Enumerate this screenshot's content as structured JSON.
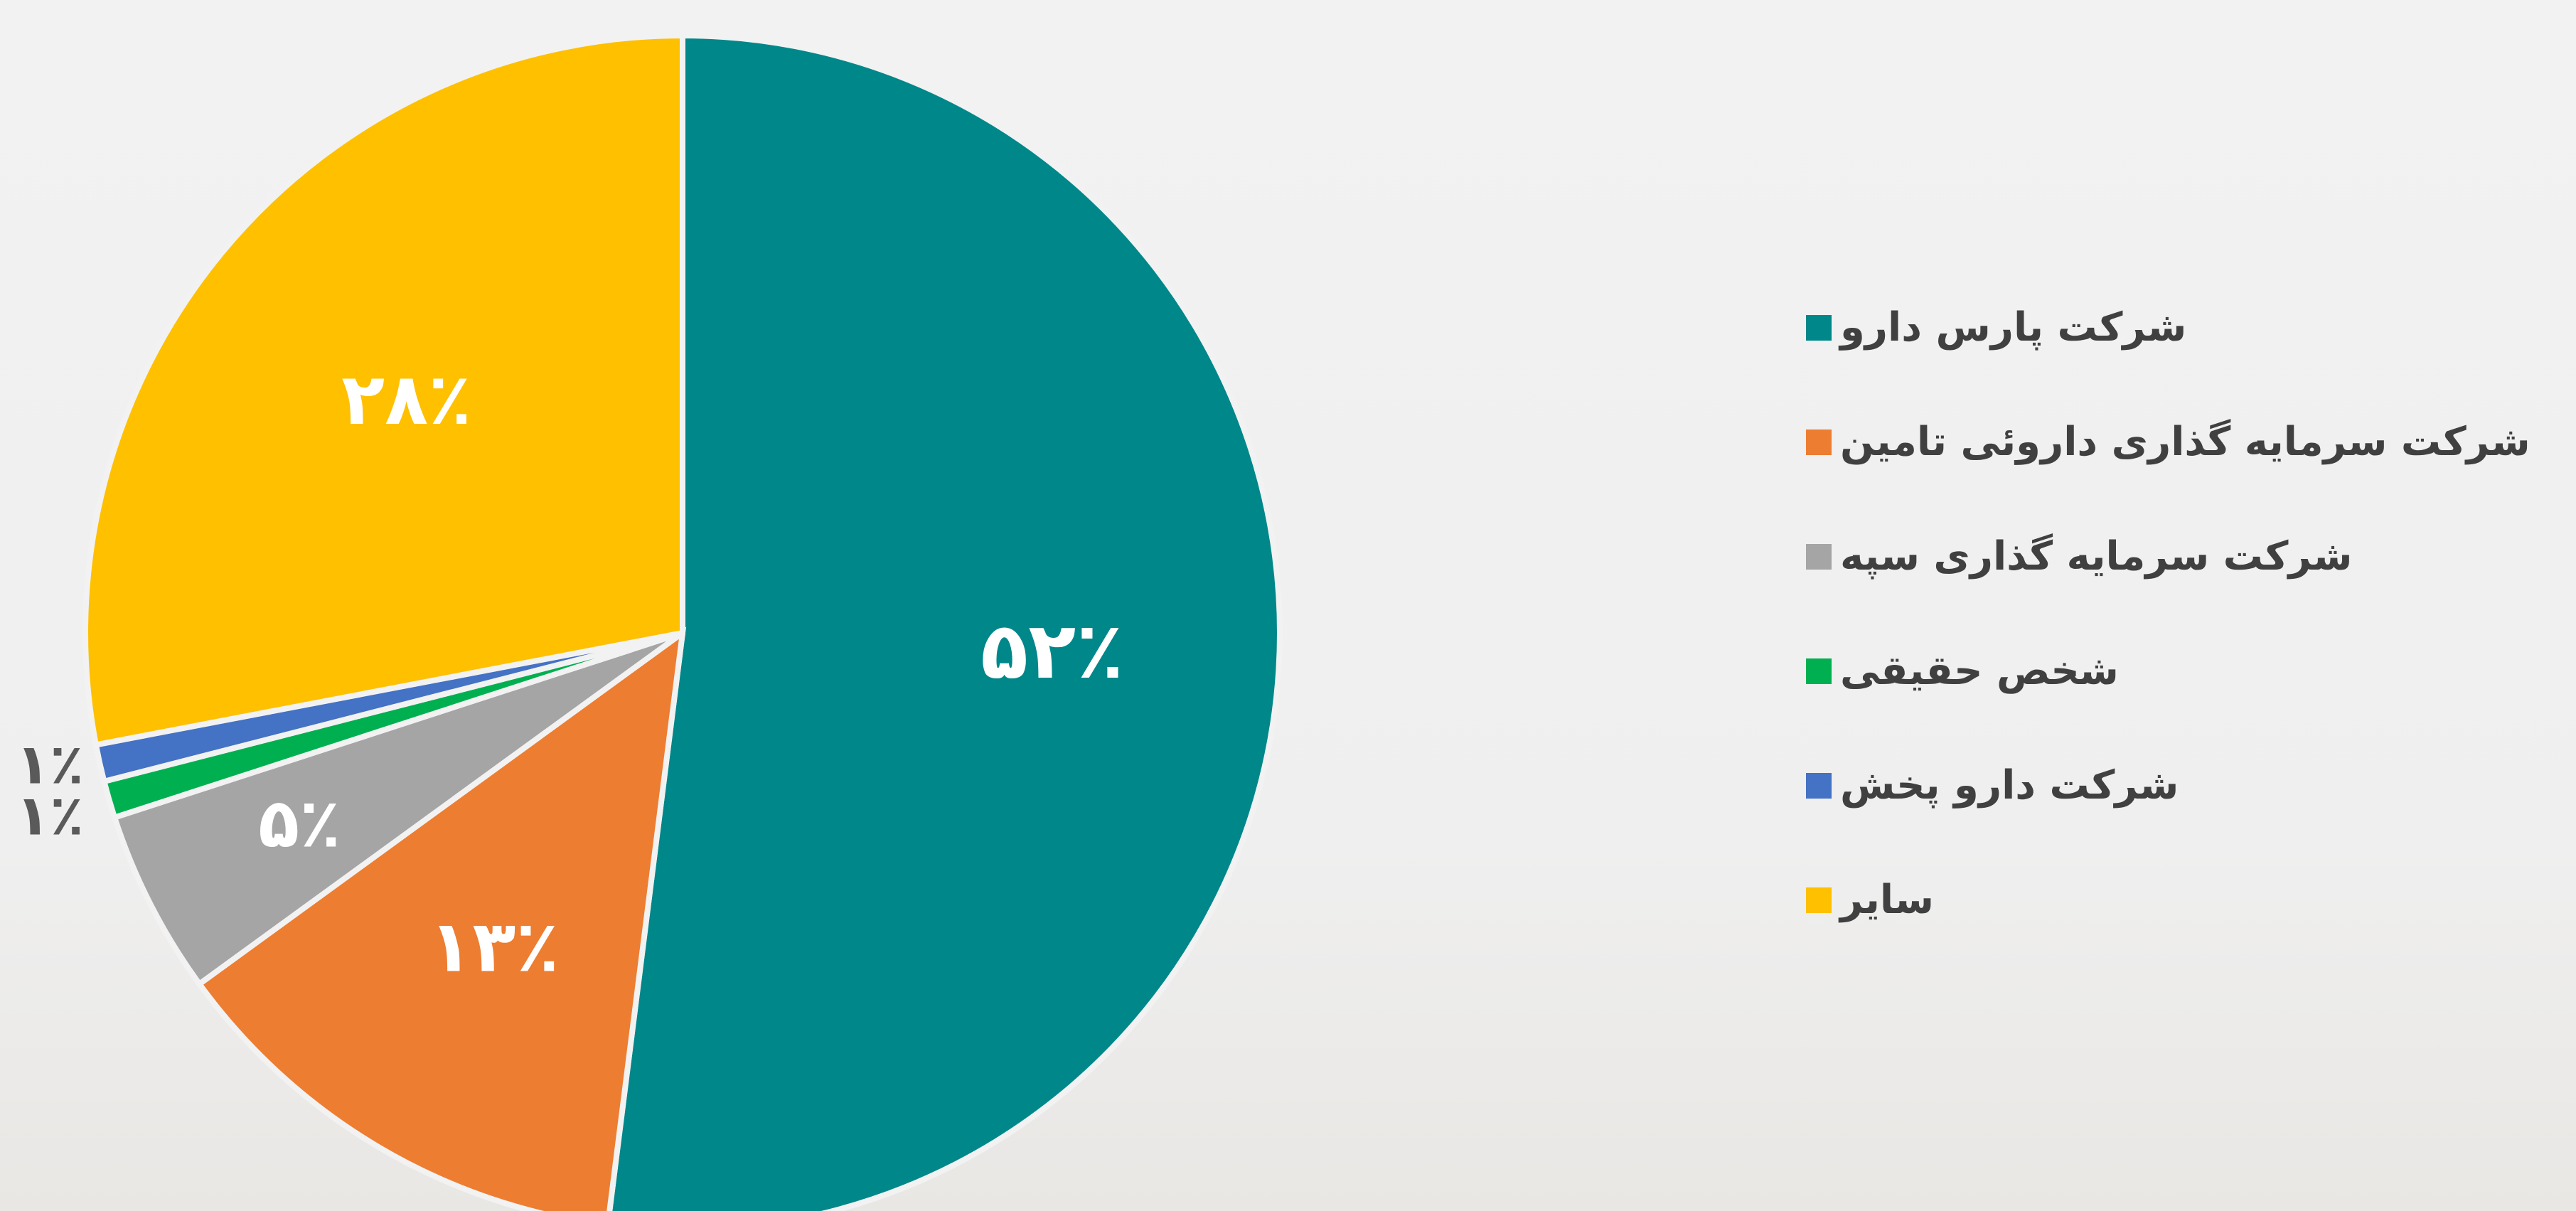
{
  "chart_data": {
    "type": "pie",
    "categories": [
      "شرکت پارس دارو",
      "شرکت سرمایه گذاری داروئی تامین",
      "شرکت سرمایه گذاری سپه",
      "شخص حقیقی",
      "شرکت دارو پخش",
      "سایر"
    ],
    "values": [
      52,
      13,
      5,
      1,
      1,
      28
    ],
    "labels": [
      "۵۲٪",
      "۱۳٪",
      "۵٪",
      "۱٪",
      "۱٪",
      "۲۸٪"
    ],
    "colors": [
      "#00878A",
      "#ED7D31",
      "#A5A5A5",
      "#00B050",
      "#4472C4",
      "#FFC000"
    ],
    "legend_position": "right",
    "start_angle_deg": -90,
    "direction": "clockwise"
  }
}
